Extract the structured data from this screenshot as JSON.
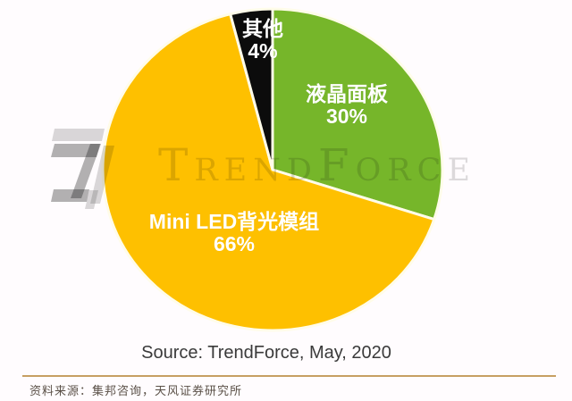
{
  "chart_data": {
    "type": "pie",
    "start_angle_deg": 0,
    "direction": "clockwise",
    "slices": [
      {
        "id": "lcd-panel",
        "label": "液晶面板",
        "value": 30,
        "pct_label": "30%",
        "color": "#76b62a"
      },
      {
        "id": "mini-led-backlight",
        "label": "Mini LED背光模组",
        "value": 66,
        "pct_label": "66%",
        "color": "#fec000"
      },
      {
        "id": "other",
        "label": "其他",
        "value": 4,
        "pct_label": "4%",
        "color": "#0c0c0c"
      }
    ],
    "separator_color": "#fffce9",
    "source_note": "Source: TrendForce, May, 2020"
  },
  "watermark": {
    "brand": "TrendForce"
  },
  "footer": {
    "text": "资料来源：集邦咨询，天风证券研究所",
    "divider_color": "#c79f63"
  }
}
